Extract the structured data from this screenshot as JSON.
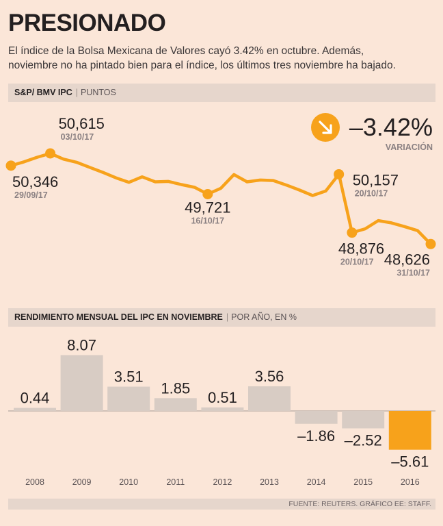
{
  "header": {
    "title": "PRESIONADO",
    "subtitle_line1": "El índice de la Bolsa Mexicana de Valores cayó 3.42% en octubre. Además,",
    "subtitle_line2": "noviembre no ha pintado bien para el índice, los últimos tres noviembre ha bajado."
  },
  "colors": {
    "accent": "#f7a21b",
    "bar_gray": "#d8ccc4",
    "bar_highlight": "#f7a21b",
    "background": "#fbe6d8",
    "band": "#e6d6cc"
  },
  "chart_data": [
    {
      "type": "line",
      "band_title": "S&P/ BMV IPC",
      "band_unit": "PUNTOS",
      "variation_value": "–3.42%",
      "variation_label": "VARIACIÓN",
      "variation_icon": "arrow-down-right-icon",
      "ylim": [
        48300,
        50900
      ],
      "series": [
        {
          "name": "S&P/ BMV IPC",
          "values": [
            50346,
            50430,
            50530,
            50615,
            50490,
            50420,
            50310,
            50200,
            50080,
            49980,
            50100,
            49990,
            50000,
            49930,
            49870,
            49721,
            49850,
            50150,
            49990,
            50030,
            50020,
            49920,
            49810,
            49690,
            49790,
            50157,
            48876,
            48960,
            49140,
            49090,
            49010,
            48920,
            48626
          ]
        }
      ],
      "annotations": [
        {
          "index": 0,
          "value": "50,346",
          "date": "29/09/17"
        },
        {
          "index": 3,
          "value": "50,615",
          "date": "03/10/17"
        },
        {
          "index": 15,
          "value": "49,721",
          "date": "16/10/17"
        },
        {
          "index": 25,
          "value": "50,157",
          "date": "20/10/17"
        },
        {
          "index": 26,
          "value": "48,876",
          "date": "20/10/17"
        },
        {
          "index": 32,
          "value": "48,626",
          "date": "31/10/17"
        }
      ]
    },
    {
      "type": "bar",
      "band_title": "RENDIMIENTO MENSUAL DEL IPC EN NOVIEMBRE",
      "band_unit": "POR AÑO, EN %",
      "categories": [
        "2008",
        "2009",
        "2010",
        "2011",
        "2012",
        "2013",
        "2014",
        "2015",
        "2016"
      ],
      "values": [
        0.44,
        8.07,
        3.51,
        1.85,
        0.51,
        3.56,
        -1.86,
        -2.52,
        -5.61
      ],
      "labels": [
        "0.44",
        "8.07",
        "3.51",
        "1.85",
        "0.51",
        "3.56",
        "–1.86",
        "–2.52",
        "–5.61"
      ],
      "highlight": "2016"
    }
  ],
  "footer": {
    "source": "FUENTE: REUTERS. GRÁFICO EE: STAFF."
  }
}
